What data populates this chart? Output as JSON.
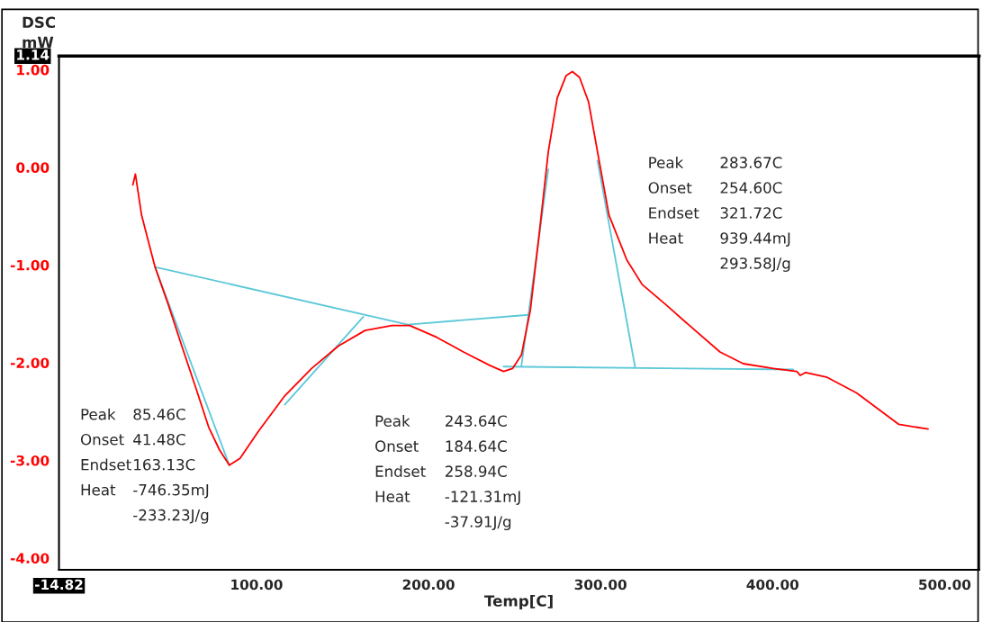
{
  "chart_data": {
    "type": "line",
    "title": "DSC",
    "ylabel": "mW",
    "xlabel": "Temp[C]",
    "xlim": [
      -14.82,
      520
    ],
    "ylim": [
      -4.12,
      1.14
    ],
    "xticks": [
      {
        "value": -14.82,
        "label": "-14.82"
      },
      {
        "value": 100,
        "label": "100.00"
      },
      {
        "value": 200,
        "label": "200.00"
      },
      {
        "value": 300,
        "label": "300.00"
      },
      {
        "value": 400,
        "label": "400.00"
      },
      {
        "value": 500,
        "label": "500.00"
      }
    ],
    "yticks": [
      {
        "value": 1.14,
        "label": "1.14"
      },
      {
        "value": 1,
        "label": "1.00"
      },
      {
        "value": 0,
        "label": "0.00"
      },
      {
        "value": -1,
        "label": "-1.00"
      },
      {
        "value": -2,
        "label": "-2.00"
      },
      {
        "value": -3,
        "label": "-3.00"
      },
      {
        "value": -4,
        "label": "-4.00"
      }
    ],
    "grid": false,
    "legend": false,
    "series": [
      {
        "color": "#ff0000",
        "x": [
          28.1,
          29.6,
          33.2,
          41.0,
          48.8,
          56.6,
          64.4,
          72.2,
          78.4,
          84.2,
          90.4,
          100.8,
          116.4,
          132,
          147.5,
          163.1,
          178.7,
          189.1,
          204.7,
          220.3,
          235.8,
          243.6,
          248.8,
          254,
          259.2,
          264.4,
          269.6,
          274.8,
          280,
          283.6,
          287.8,
          293,
          298.2,
          304.9,
          315.3,
          324.2,
          338.2,
          351.7,
          369.4,
          382.9,
          400.5,
          414,
          416.1,
          419.2,
          431.7,
          448.8,
          473.2,
          490.4
        ],
        "values": [
          -0.18,
          -0.07,
          -0.49,
          -1.02,
          -1.41,
          -1.83,
          -2.24,
          -2.66,
          -2.89,
          -3.05,
          -2.98,
          -2.71,
          -2.34,
          -2.06,
          -1.83,
          -1.67,
          -1.62,
          -1.62,
          -1.74,
          -1.89,
          -2.03,
          -2.09,
          -2.06,
          -1.92,
          -1.46,
          -0.67,
          0.16,
          0.71,
          0.94,
          0.98,
          0.92,
          0.67,
          0.16,
          -0.49,
          -0.95,
          -1.2,
          -1.41,
          -1.62,
          -1.89,
          -2.01,
          -2.06,
          -2.09,
          -2.13,
          -2.1,
          -2.15,
          -2.31,
          -2.63,
          -2.68
        ]
      },
      {
        "color": "#5bc8d8",
        "x": [
          41.0,
          188,
          258.2
        ],
        "values": [
          -1.02,
          -1.61,
          -1.51
        ]
      },
      {
        "color": "#5bc8d8",
        "x": [
          41.0,
          84.2
        ],
        "values": [
          -1.02,
          -3.05
        ]
      },
      {
        "color": "#5bc8d8",
        "x": [
          116.4,
          162.1
        ],
        "values": [
          -2.43,
          -1.53
        ]
      },
      {
        "color": "#5bc8d8",
        "x": [
          254.0,
          269.6
        ],
        "values": [
          -2.03,
          -0.02
        ]
      },
      {
        "color": "#5bc8d8",
        "x": [
          298.2,
          320
        ],
        "values": [
          0.07,
          -2.04
        ]
      },
      {
        "color": "#5bc8d8",
        "x": [
          243.6,
          412
        ],
        "values": [
          -2.04,
          -2.07
        ]
      }
    ],
    "annotations": [
      "Peak 85.46C",
      "Onset 41.48C",
      "Endset 163.13C",
      "Heat -746.35mJ",
      "-233.23J/g",
      "Peak 243.64C",
      "Onset 184.64C",
      "Endset 258.94C",
      "Heat -121.31mJ",
      "-37.91J/g",
      "Peak 283.67C",
      "Onset 254.60C",
      "Endset 321.72C",
      "Heat 939.44mJ",
      "293.58J/g"
    ]
  }
}
